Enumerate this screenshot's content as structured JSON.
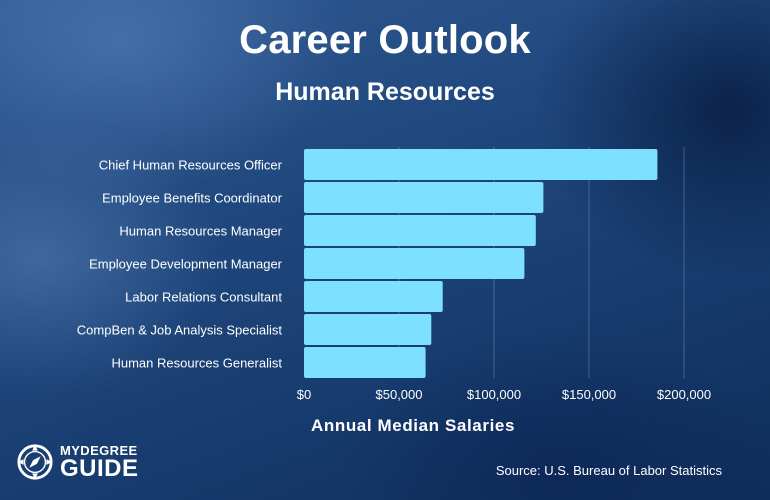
{
  "header": {
    "title": "Career Outlook",
    "subtitle": "Human Resources"
  },
  "chart_data": {
    "type": "bar",
    "orientation": "horizontal",
    "categories": [
      "Chief Human Resources Officer",
      "Employee Benefits Coordinator",
      "Human Resources Manager",
      "Employee Development Manager",
      "Labor Relations Consultant",
      "CompBen & Job Analysis Specialist",
      "Human Resources Generalist"
    ],
    "values": [
      186000,
      126000,
      122000,
      116000,
      73000,
      67000,
      64000
    ],
    "xlabel": "Annual Median Salaries",
    "xlim": [
      0,
      200000
    ],
    "ticks": [
      0,
      50000,
      100000,
      150000,
      200000
    ],
    "tick_labels": [
      "$0",
      "$50,000",
      "$100,000",
      "$150,000",
      "$200,000"
    ],
    "grid": true,
    "legend": "none",
    "colors": {
      "bar": "#7ee0ff",
      "text": "#ffffff"
    }
  },
  "footer": {
    "logo_top": "MYDEGREE",
    "logo_bottom": "GUIDE",
    "source": "Source: U.S. Bureau of Labor Statistics"
  }
}
